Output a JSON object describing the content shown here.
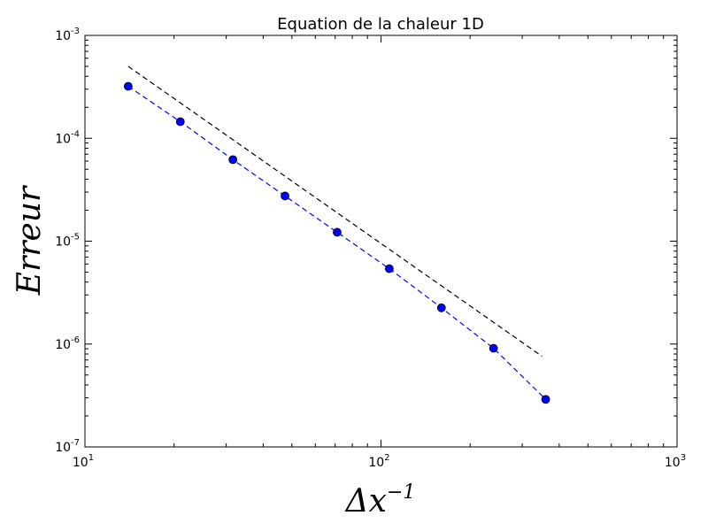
{
  "chart_data": {
    "type": "scatter",
    "title": "Equation de la chaleur 1D",
    "xlabel": {
      "base": "Δx",
      "exponent": "−1"
    },
    "ylabel": "Erreur",
    "xscale": "log",
    "yscale": "log",
    "xlim": [
      10,
      1000
    ],
    "ylim": [
      1e-07,
      0.001
    ],
    "grid": false,
    "x_ticks": [
      {
        "base": "10",
        "exp": "1",
        "value": 10
      },
      {
        "base": "10",
        "exp": "2",
        "value": 100
      },
      {
        "base": "10",
        "exp": "3",
        "value": 1000
      }
    ],
    "y_ticks": [
      {
        "base": "10",
        "exp": "-7",
        "value": 1e-07
      },
      {
        "base": "10",
        "exp": "-6",
        "value": 1e-06
      },
      {
        "base": "10",
        "exp": "-5",
        "value": 1e-05
      },
      {
        "base": "10",
        "exp": "-4",
        "value": 0.0001
      },
      {
        "base": "10",
        "exp": "-3",
        "value": 0.001
      }
    ],
    "series": [
      {
        "style": "markers+dashed",
        "color": "#0000ff",
        "x": [
          14,
          21,
          31.6,
          47.4,
          71.1,
          106.7,
          160,
          240,
          360
        ],
        "y": [
          0.00032,
          0.000145,
          6.2e-05,
          2.75e-05,
          1.22e-05,
          5.4e-06,
          2.25e-06,
          9.1e-07,
          2.9e-07
        ]
      },
      {
        "style": "dashed",
        "color": "#000000",
        "x": [
          14,
          350
        ],
        "y": [
          0.0005,
          7.6e-07
        ]
      }
    ]
  }
}
